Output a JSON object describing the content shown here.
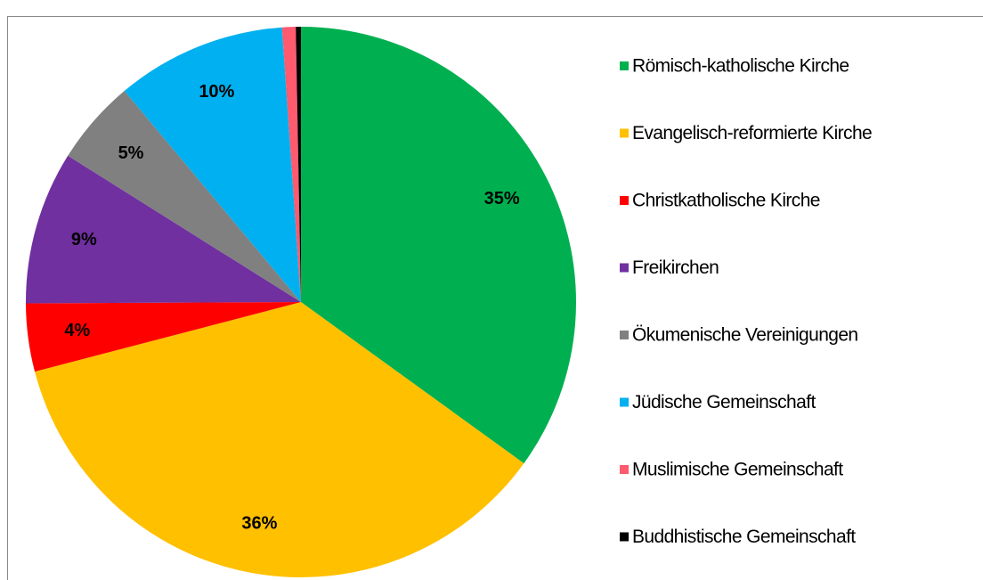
{
  "chart_data": {
    "type": "pie",
    "categories": [
      "Römisch-katholische Kirche",
      "Evangelisch-reformierte Kirche",
      "Christkatholische Kirche",
      "Freikirchen",
      "Ökumenische Vereinigungen",
      "Jüdische Gemeinschaft",
      "Muslimische Gemeinschaft",
      "Buddhistische Gemeinschaft"
    ],
    "values": [
      35,
      36,
      4,
      9,
      5,
      10,
      0.8,
      0.3
    ],
    "value_labels": [
      "35%",
      "36%",
      "4%",
      "9%",
      "5%",
      "10%",
      null,
      null
    ],
    "colors": [
      "#00b050",
      "#ffc000",
      "#ff0000",
      "#7030a0",
      "#808080",
      "#00b0f0",
      "#ff5a6e",
      "#000000"
    ],
    "legend": "right"
  }
}
